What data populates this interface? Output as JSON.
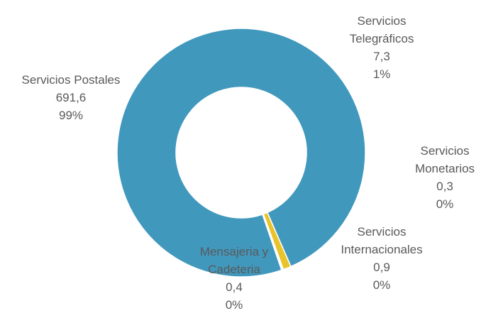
{
  "chart_data": {
    "type": "donut",
    "categories": [
      "Servicios Postales",
      "Servicios Telegráficos",
      "Servicios Monetarios",
      "Servicios Internacionales",
      "Mensajeria y Cadeteria"
    ],
    "values": [
      691.6,
      7.3,
      0.3,
      0.9,
      0.4
    ],
    "value_labels": [
      "691,6",
      "7,3",
      "0,3",
      "0,9",
      "0,4"
    ],
    "percents": [
      99,
      1,
      0,
      0,
      0
    ],
    "percent_labels": [
      "99%",
      "1%",
      "0%",
      "0%",
      "0%"
    ],
    "colors": [
      "#4198bd",
      "#e9c32b",
      "#8b8b8b",
      "#3a6fb0",
      "#6aa84f"
    ]
  }
}
